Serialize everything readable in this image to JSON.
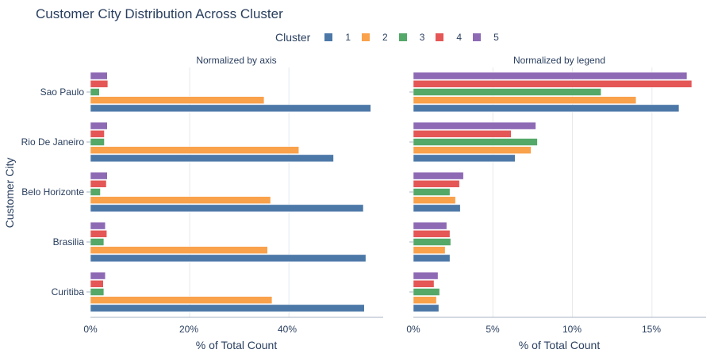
{
  "chart_data": {
    "title": "Customer City Distribution Across Cluster",
    "type": "bar",
    "orientation": "horizontal",
    "legend": {
      "title": "Cluster",
      "placement": "top-center",
      "items": [
        {
          "name": "1",
          "color": "#4c78a8"
        },
        {
          "name": "2",
          "color": "#f9a14b"
        },
        {
          "name": "3",
          "color": "#54a868"
        },
        {
          "name": "4",
          "color": "#e45756"
        },
        {
          "name": "5",
          "color": "#8e6ab5"
        }
      ]
    },
    "ylabel": "Customer City",
    "categories": [
      "Sao Paulo",
      "Rio De Janeiro",
      "Belo Horizonte",
      "Brasilia",
      "Curitiba"
    ],
    "panels": [
      {
        "subtitle": "Normalized by axis",
        "xlabel": "% of Total Count",
        "xlim": [
          0,
          59
        ],
        "xticks": [
          0,
          20,
          40
        ],
        "xticklabels": [
          "0%",
          "20%",
          "40%"
        ],
        "grid": true,
        "series": [
          {
            "name": "1",
            "values": [
              56.5,
              49,
              55,
              55.5,
              55.2
            ]
          },
          {
            "name": "2",
            "values": [
              35,
              42,
              36.3,
              35.7,
              36.6
            ]
          },
          {
            "name": "3",
            "values": [
              1.8,
              2.8,
              2.0,
              2.7,
              2.7
            ]
          },
          {
            "name": "4",
            "values": [
              3.5,
              2.8,
              3.2,
              3.3,
              2.6
            ]
          },
          {
            "name": "5",
            "values": [
              3.4,
              3.4,
              3.4,
              3.0,
              3.0
            ]
          }
        ]
      },
      {
        "subtitle": "Normalized by legend",
        "xlabel": "% of Total Count",
        "xlim": [
          0,
          18.4
        ],
        "xticks": [
          0,
          5,
          10,
          15
        ],
        "xticklabels": [
          "0%",
          "5%",
          "10%",
          "15%"
        ],
        "grid": true,
        "series": [
          {
            "name": "1",
            "values": [
              16.7,
              6.4,
              2.95,
              2.3,
              1.6
            ]
          },
          {
            "name": "2",
            "values": [
              14.0,
              7.4,
              2.65,
              2.0,
              1.45
            ]
          },
          {
            "name": "3",
            "values": [
              11.8,
              7.8,
              2.3,
              2.35,
              1.65
            ]
          },
          {
            "name": "4",
            "values": [
              17.5,
              6.15,
              2.9,
              2.3,
              1.3
            ]
          },
          {
            "name": "5",
            "values": [
              17.2,
              7.7,
              3.15,
              2.1,
              1.55
            ]
          }
        ]
      }
    ]
  }
}
